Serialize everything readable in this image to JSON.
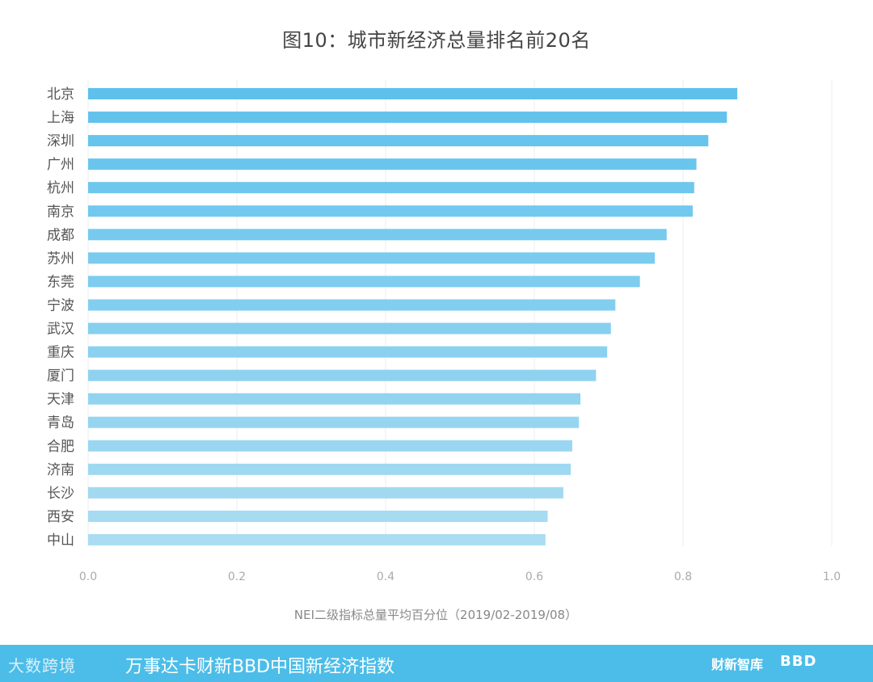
{
  "chart_data": {
    "type": "bar",
    "orientation": "horizontal",
    "title": "图10：城市新经济总量排名前20名",
    "categories": [
      "北京",
      "上海",
      "深圳",
      "广州",
      "杭州",
      "南京",
      "成都",
      "苏州",
      "东莞",
      "宁波",
      "武汉",
      "重庆",
      "厦门",
      "天津",
      "青岛",
      "合肥",
      "济南",
      "长沙",
      "西安",
      "中山"
    ],
    "values": [
      0.873,
      0.859,
      0.834,
      0.818,
      0.815,
      0.813,
      0.778,
      0.762,
      0.742,
      0.709,
      0.703,
      0.698,
      0.683,
      0.662,
      0.66,
      0.651,
      0.649,
      0.639,
      0.618,
      0.615
    ],
    "xlim": [
      0,
      1.0
    ],
    "xticks": [
      "0.0",
      "0.2",
      "0.4",
      "0.6",
      "0.8",
      "1.0"
    ],
    "xlabel": "NEI二级指标总量平均百分位（2019/02-2019/08）",
    "ylabel": "",
    "grid": "vertical",
    "colors": {
      "bar_top": "#5ec1ec",
      "bar_bottom": "#aadcf2",
      "axis_text": "#999999",
      "category_text": "#555555",
      "grid": "#eeeeee"
    }
  },
  "footer": {
    "logo_text": "大数跨境",
    "label": "万事达卡财新BBD中国新经济指数",
    "brand1": "财新智库",
    "brand2": "BBD",
    "background": "#4cbde8"
  }
}
